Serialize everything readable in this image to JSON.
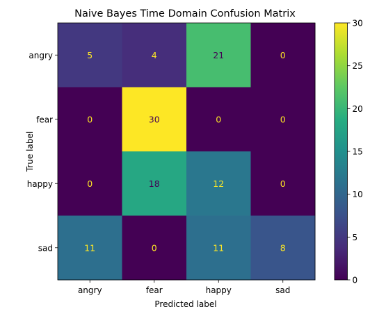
{
  "chart_data": {
    "type": "heatmap",
    "title": "Naive Bayes Time Domain Confusion Matrix",
    "xlabel": "Predicted label",
    "ylabel": "True label",
    "x_categories": [
      "angry",
      "fear",
      "happy",
      "sad"
    ],
    "y_categories": [
      "angry",
      "fear",
      "happy",
      "sad"
    ],
    "values": [
      [
        5,
        4,
        21,
        0
      ],
      [
        0,
        30,
        0,
        0
      ],
      [
        0,
        18,
        12,
        0
      ],
      [
        11,
        0,
        11,
        8
      ]
    ],
    "colormap": "viridis",
    "colorbar": {
      "range": [
        0,
        30
      ],
      "ticks": [
        0,
        5,
        10,
        15,
        20,
        25,
        30
      ]
    },
    "text_colors": {
      "on_dark": "#fde725",
      "on_light": "#440154"
    },
    "grid": false
  }
}
